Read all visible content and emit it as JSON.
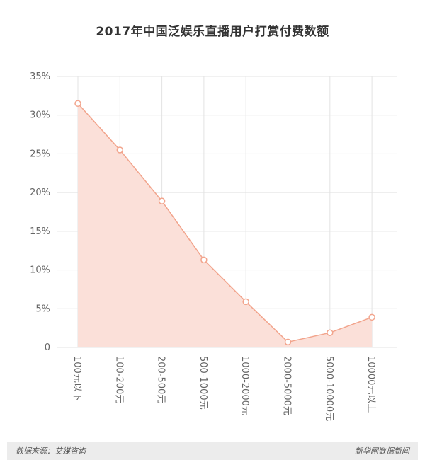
{
  "chart_data": {
    "type": "area",
    "title": "2017年中国泛娱乐直播用户打赏付费数额",
    "categories": [
      "100元以下",
      "100-200元",
      "200-500元",
      "500-1000元",
      "1000-2000元",
      "2000-5000元",
      "5000-10000元",
      "10000元以上"
    ],
    "series": [
      {
        "values": [
          31.5,
          25.5,
          18.9,
          11.3,
          5.9,
          0.7,
          1.9,
          3.9
        ]
      }
    ],
    "y_ticks": [
      "0",
      "5%",
      "10%",
      "15%",
      "20%",
      "25%",
      "30%",
      "35%"
    ],
    "ylim": [
      0,
      35
    ],
    "xlabel": "",
    "ylabel": "",
    "grid": true,
    "colors": {
      "line": "#f2a48c",
      "fill": "#fbe0d9",
      "marker_fill": "#ffffff",
      "grid": "#e3e3e3",
      "tick_text": "#666666"
    }
  },
  "footer": {
    "source": "数据来源：艾媒咨询",
    "credit": "新华网数据新闻"
  }
}
